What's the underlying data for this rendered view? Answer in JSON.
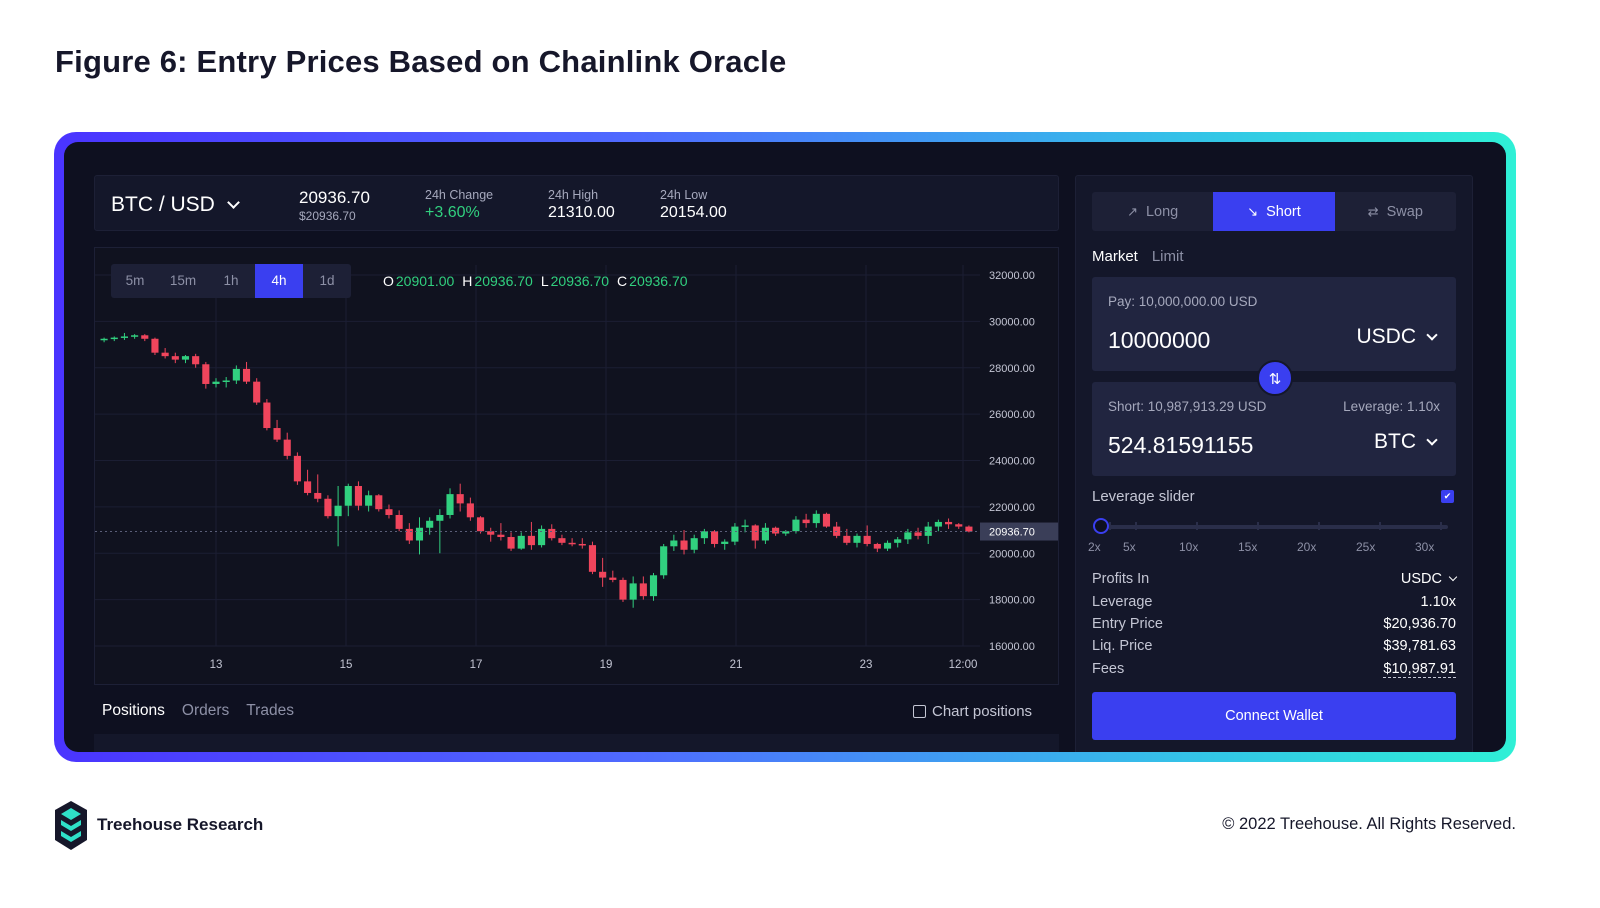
{
  "figure_title": "Figure 6: Entry Prices Based on Chainlink Oracle",
  "ticker": {
    "pair": "BTC / USD",
    "price": "20936.70",
    "price_usd": "$20936.70",
    "change_label": "24h Change",
    "change_value": "+3.60%",
    "high_label": "24h High",
    "high_value": "21310.00",
    "low_label": "24h Low",
    "low_value": "20154.00"
  },
  "timeframes": [
    "5m",
    "15m",
    "1h",
    "4h",
    "1d"
  ],
  "active_timeframe": "4h",
  "ohlc": {
    "o_key": "O",
    "o": "20901.00",
    "h_key": "H",
    "h": "20936.70",
    "l_key": "L",
    "l": "20936.70",
    "c_key": "C",
    "c": "20936.70"
  },
  "chart_data": {
    "type": "candlestick",
    "y_ticks": [
      "32000.00",
      "30000.00",
      "28000.00",
      "26000.00",
      "24000.00",
      "22000.00",
      "20000.00",
      "18000.00",
      "16000.00"
    ],
    "x_ticks": [
      "13",
      "15",
      "17",
      "19",
      "21",
      "23",
      "12:00"
    ],
    "ylim": [
      16000,
      32000
    ],
    "last_price_label": "20936.70",
    "last_price": 20936.7,
    "colors": {
      "up": "#31d07f",
      "down": "#f0455c"
    },
    "candles": [
      [
        29200,
        29300,
        29100,
        29250
      ],
      [
        29250,
        29350,
        29150,
        29300
      ],
      [
        29300,
        29500,
        29200,
        29350
      ],
      [
        29350,
        29450,
        29250,
        29400
      ],
      [
        29400,
        29450,
        29150,
        29250
      ],
      [
        29250,
        29300,
        28550,
        28650
      ],
      [
        28650,
        28850,
        28400,
        28500
      ],
      [
        28500,
        28650,
        28200,
        28350
      ],
      [
        28350,
        28550,
        28200,
        28500
      ],
      [
        28500,
        28600,
        28000,
        28150
      ],
      [
        28150,
        28250,
        27100,
        27300
      ],
      [
        27300,
        27550,
        27150,
        27400
      ],
      [
        27400,
        27600,
        27150,
        27450
      ],
      [
        27450,
        28100,
        27300,
        27950
      ],
      [
        27950,
        28250,
        27300,
        27400
      ],
      [
        27400,
        27550,
        26400,
        26500
      ],
      [
        26500,
        26650,
        25300,
        25400
      ],
      [
        25400,
        25750,
        24800,
        24900
      ],
      [
        24900,
        25200,
        24050,
        24200
      ],
      [
        24200,
        24350,
        22950,
        23100
      ],
      [
        23100,
        23600,
        22500,
        22600
      ],
      [
        22600,
        23400,
        22200,
        22350
      ],
      [
        22350,
        22500,
        21500,
        21600
      ],
      [
        21600,
        22900,
        20300,
        22050
      ],
      [
        22050,
        23000,
        21600,
        22900
      ],
      [
        22900,
        23100,
        21850,
        22050
      ],
      [
        22050,
        22700,
        21800,
        22500
      ],
      [
        22500,
        22550,
        21800,
        21900
      ],
      [
        21900,
        22100,
        21500,
        21650
      ],
      [
        21650,
        21850,
        20950,
        21050
      ],
      [
        21050,
        21300,
        20400,
        20550
      ],
      [
        20550,
        21550,
        19950,
        21100
      ],
      [
        21100,
        21550,
        20800,
        21400
      ],
      [
        21400,
        21900,
        20000,
        21650
      ],
      [
        21650,
        22800,
        21500,
        22550
      ],
      [
        22550,
        23000,
        21800,
        22150
      ],
      [
        22150,
        22400,
        21400,
        21550
      ],
      [
        21550,
        21600,
        20850,
        20950
      ],
      [
        20950,
        21100,
        20500,
        20800
      ],
      [
        20800,
        21300,
        20550,
        20700
      ],
      [
        20700,
        20900,
        20100,
        20200
      ],
      [
        20200,
        20900,
        20150,
        20750
      ],
      [
        20750,
        21350,
        20150,
        20350
      ],
      [
        20350,
        21200,
        20250,
        21050
      ],
      [
        21050,
        21250,
        20550,
        20650
      ],
      [
        20650,
        20800,
        20350,
        20450
      ],
      [
        20450,
        20650,
        20300,
        20400
      ],
      [
        20400,
        20650,
        20200,
        20350
      ],
      [
        20350,
        20500,
        19100,
        19200
      ],
      [
        19200,
        19800,
        18550,
        18950
      ],
      [
        18950,
        19250,
        18750,
        18850
      ],
      [
        18850,
        18950,
        17900,
        18000
      ],
      [
        18000,
        19000,
        17650,
        18700
      ],
      [
        18700,
        19000,
        18000,
        18150
      ],
      [
        18150,
        19150,
        17950,
        19050
      ],
      [
        19050,
        20400,
        18900,
        20300
      ],
      [
        20300,
        20800,
        20100,
        20550
      ],
      [
        20550,
        21000,
        19950,
        20150
      ],
      [
        20150,
        20800,
        20000,
        20650
      ],
      [
        20650,
        21050,
        20400,
        20950
      ],
      [
        20950,
        21000,
        20250,
        20400
      ],
      [
        20400,
        20600,
        20150,
        20500
      ],
      [
        20500,
        21300,
        20350,
        21150
      ],
      [
        21150,
        21450,
        20900,
        21200
      ],
      [
        21200,
        21250,
        20200,
        20550
      ],
      [
        20550,
        21300,
        20400,
        21100
      ],
      [
        21100,
        21150,
        20750,
        20850
      ],
      [
        20850,
        21000,
        20750,
        20950
      ],
      [
        20950,
        21600,
        20850,
        21450
      ],
      [
        21450,
        21700,
        21100,
        21300
      ],
      [
        21300,
        21850,
        21100,
        21700
      ],
      [
        21700,
        21750,
        21100,
        21150
      ],
      [
        21150,
        21350,
        20650,
        20750
      ],
      [
        20750,
        21050,
        20350,
        20450
      ],
      [
        20450,
        20850,
        20250,
        20750
      ],
      [
        20750,
        21200,
        20300,
        20400
      ],
      [
        20400,
        20450,
        20050,
        20200
      ],
      [
        20200,
        20550,
        20100,
        20450
      ],
      [
        20450,
        20700,
        20250,
        20600
      ],
      [
        20600,
        21050,
        20400,
        20900
      ],
      [
        20900,
        21100,
        20600,
        20750
      ],
      [
        20750,
        21350,
        20400,
        21150
      ],
      [
        21150,
        21450,
        20950,
        21350
      ],
      [
        21350,
        21500,
        21050,
        21250
      ],
      [
        21250,
        21300,
        21050,
        21150
      ],
      [
        21150,
        21200,
        20900,
        20936.7
      ]
    ]
  },
  "bottom_tabs": [
    "Positions",
    "Orders",
    "Trades"
  ],
  "chart_positions_label": "Chart positions",
  "trade": {
    "modes": [
      {
        "label": "Long",
        "icon": "trend-up-icon"
      },
      {
        "label": "Short",
        "icon": "trend-down-icon"
      },
      {
        "label": "Swap",
        "icon": "swap-arrows-icon"
      }
    ],
    "active_mode": "Short",
    "order_types": [
      "Market",
      "Limit"
    ],
    "pay_caption": "Pay: 10,000,000.00 USD",
    "pay_amount": "10000000",
    "pay_token": "USDC",
    "short_caption": "Short: 10,987,913.29 USD",
    "leverage_caption": "Leverage: 1.10x",
    "short_amount": "524.81591155",
    "short_token": "BTC",
    "leverage_slider_label": "Leverage slider",
    "leverage_ticks": [
      "2x",
      "5x",
      "10x",
      "15x",
      "20x",
      "25x",
      "30x"
    ],
    "leverage_value": 1.1,
    "info": [
      {
        "key": "Profits In",
        "value": "USDC"
      },
      {
        "key": "Leverage",
        "value": "1.10x"
      },
      {
        "key": "Entry Price",
        "value": "$20,936.70"
      },
      {
        "key": "Liq. Price",
        "value": "$39,781.63"
      },
      {
        "key": "Fees",
        "value": "$10,987.91"
      }
    ],
    "connect_label": "Connect Wallet"
  },
  "footer": {
    "brand": "Treehouse Research",
    "copyright": "© 2022 Treehouse. All Rights Reserved."
  },
  "colors": {
    "accent": "#3a3ff0",
    "up": "#31d07f",
    "down": "#f0455c",
    "background": "#0e1020"
  }
}
